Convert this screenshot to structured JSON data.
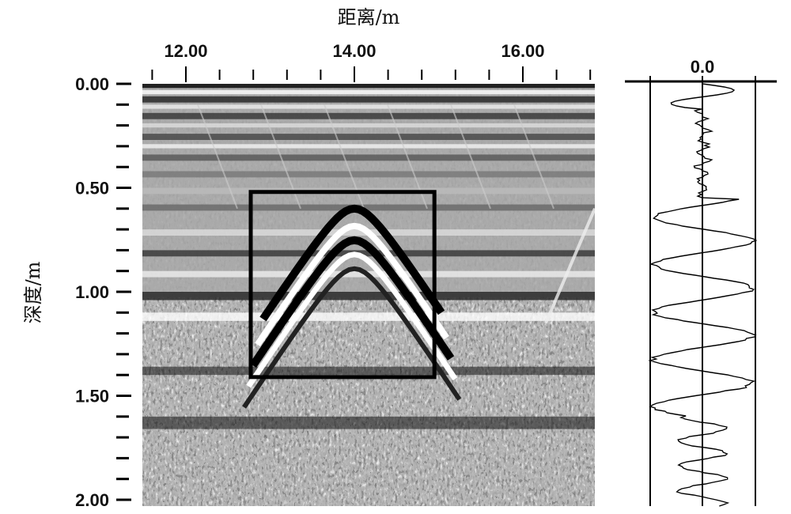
{
  "chart_data": {
    "type": "heatmap",
    "description_kind": "radargram",
    "xlabel": "距离/m",
    "ylabel": "深度/m",
    "x_ticks": [
      "12.00",
      "14.00",
      "16.00"
    ],
    "x_tick_values": [
      12.0,
      14.0,
      16.0
    ],
    "xlim": [
      11.4,
      16.9
    ],
    "x_minor_step": 0.4,
    "y_ticks": [
      "0.00",
      "0.50",
      "1.00",
      "1.50",
      "2.00"
    ],
    "y_tick_values": [
      0.0,
      0.5,
      1.0,
      1.5,
      2.0
    ],
    "ylim": [
      0.0,
      2.0
    ],
    "y_minor_step": 0.1,
    "colormap": "grayscale",
    "highlight_box": {
      "x_range": [
        12.77,
        14.95
      ],
      "y_range": [
        0.52,
        1.41
      ]
    },
    "hyperbola_apex": {
      "x": 14.0,
      "y": 0.6
    },
    "trace_panel": {
      "zero_label": "0.0"
    }
  }
}
